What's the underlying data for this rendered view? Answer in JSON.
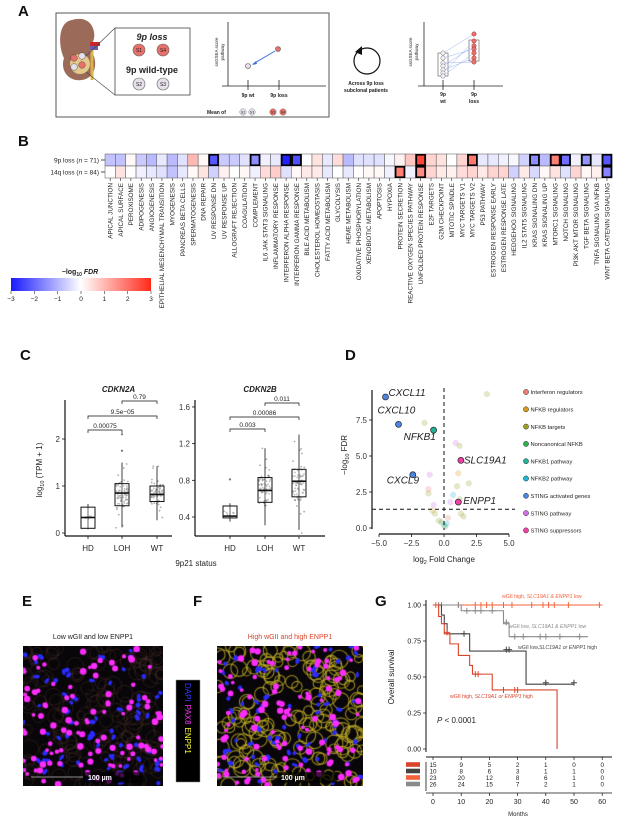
{
  "panels": {
    "A": "A",
    "B": "B",
    "C": "C",
    "D": "D",
    "E": "E",
    "F": "F",
    "G": "G"
  },
  "panel_a": {
    "loss_title": "9p loss",
    "wt_title": "9p wild-type",
    "samples": [
      "S1",
      "S4",
      "S2",
      "S3"
    ],
    "ylabel_1": "ssGSEA score",
    "ylabel_2": "pathway",
    "x_wt": "9p wt",
    "x_loss": "9p loss",
    "mean_of": "Mean of",
    "loop_1": "Across 9p loss",
    "loop_2": "subclonal patients",
    "right_wt_1": "9p",
    "right_wt_2": "wt",
    "right_loss_1": "9p",
    "right_loss_2": "loss",
    "colors": {
      "loss": "#e8706a",
      "wt": "#e6e0ea",
      "arrow": "#3b6fe0"
    }
  },
  "chart_data": [
    {
      "id": "B",
      "type": "heatmap",
      "rows": [
        "9p loss (n = 71)",
        "14q loss (n = 84)"
      ],
      "row_parts": [
        [
          "9p loss (",
          "n",
          " = 71)"
        ],
        [
          "14q loss (",
          "n",
          " = 84)"
        ]
      ],
      "columns": [
        "APICAL JUNCTION",
        "APICAL SURFACE",
        "PEROXISOME",
        "ADIPOGENESIS",
        "ANGIOGENESIS",
        "EPITHELIAL MESENCHYMAL TRANSITION",
        "MYOGENESIS",
        "PANCREAS BETA CELLS",
        "SPERMATOGENESIS",
        "DNA REPAIR",
        "UV RESPONSE DN",
        "UV RESPONSE UP",
        "ALLOGRAFT REJECTION",
        "COAGULATION",
        "COMPLEMENT",
        "IL6 JAK STAT3 SIGNALING",
        "INFLAMMATORY RESPONSE",
        "INTERFERON ALPHA RESPONSE",
        "INTERFERON GAMMA RESPONSE",
        "BILE ACID METABOLISM",
        "CHOLESTEROL HOMEOSTASIS",
        "FATTY ACID METABOLISM",
        "GLYCOLYSIS",
        "HEME METABOLISM",
        "OXIDATIVE PHOSPHORYLATION",
        "XENOBIOTIC METABOLISM",
        "APOPTOSIS",
        "HYPOXIA",
        "PROTEIN SECRETION",
        "REACTIVE OXYGEN SPECIES PATHWAY",
        "UNFOLDED PROTEIN RESPONSE",
        "E2F TARGETS",
        "G2M CHECKPOINT",
        "MITOTIC SPINDLE",
        "MYC TARGETS V1",
        "MYC TARGETS V2",
        "P53 PATHWAY",
        "ESTROGEN RESPONSE EARLY",
        "ESTROGEN RESPONSE LATE",
        "HEDGEHOG SIGNALING",
        "IL2 STAT5 SIGNALING",
        "KRAS SIGNALING DN",
        "KRAS SIGNALING UP",
        "MTORC1 SIGNALING",
        "NOTCH SIGNALING",
        "PI3K AKT MTOR SIGNALING",
        "TGF BETA SIGNALING",
        "TNFA SIGNALING VIA NFKB",
        "WNT BETA CATENIN SIGNALING"
      ],
      "values": [
        [
          -0.8,
          -0.8,
          0.1,
          -0.7,
          -0.9,
          -0.3,
          -0.9,
          -0.4,
          1.0,
          0.1,
          -2.2,
          -0.7,
          -0.7,
          -0.4,
          -1.5,
          -0.2,
          -0.3,
          -2.9,
          -2.3,
          0.0,
          0.4,
          -0.3,
          0.5,
          -0.9,
          -0.4,
          -0.4,
          -0.4,
          -0.1,
          0.2,
          0.8,
          2.6,
          0.6,
          0.4,
          0.0,
          0.6,
          1.9,
          -0.3,
          -0.3,
          -0.2,
          -0.1,
          -0.6,
          -1.5,
          -0.9,
          1.8,
          -1.9,
          -0.2,
          -1.4,
          -0.3,
          -2.2
        ],
        [
          0.0,
          0.4,
          0.0,
          -0.2,
          -0.3,
          -0.4,
          -0.8,
          -0.3,
          0.1,
          0.4,
          -0.6,
          0.2,
          0.0,
          0.1,
          -0.2,
          0.5,
          0.7,
          -0.4,
          0.1,
          0.3,
          0.3,
          -0.3,
          0.0,
          -0.3,
          0.0,
          0.1,
          0.1,
          -0.2,
          1.8,
          -0.2,
          1.6,
          0.6,
          0.3,
          0.2,
          0.5,
          0.6,
          0.3,
          0.6,
          0.6,
          -0.6,
          0.3,
          -0.5,
          0.1,
          0.4,
          -0.4,
          0.6,
          0.1,
          0.2,
          -1.6
        ]
      ],
      "significant": [
        [
          10,
          14,
          17,
          18,
          30,
          35,
          41,
          43,
          44,
          46,
          48
        ],
        [
          28,
          30,
          48
        ]
      ],
      "colorbar": {
        "title_pre": "−log",
        "title_sub": "10",
        "title_post": " FDR",
        "range": [
          -3,
          3
        ],
        "ticks": [
          "−3",
          "−2",
          "−1",
          "0",
          "1",
          "2",
          "3"
        ],
        "low_color": "#1a1aff",
        "high_color": "#ff2a1a"
      }
    },
    {
      "id": "C",
      "type": "box",
      "xlabel": "9p21 status",
      "ylabel_pre": "log",
      "ylabel_sub": "10",
      "ylabel_post": " (TPM + 1)",
      "categories": [
        "HD",
        "LOH",
        "WT"
      ],
      "plots": [
        {
          "title": "CDKN2A",
          "ylim": [
            0,
            2.8
          ],
          "ticks": [
            0,
            1,
            2
          ],
          "tick_labels": [
            "0",
            "1",
            "2"
          ],
          "boxes": [
            {
              "q1": 0.1,
              "median": 0.33,
              "q3": 0.55,
              "min": 0.08,
              "max": 0.62,
              "outliers": []
            },
            {
              "q1": 0.58,
              "median": 0.85,
              "q3": 1.05,
              "min": 0.12,
              "max": 1.5,
              "outliers": [
                1.75,
                2.1
              ]
            },
            {
              "q1": 0.67,
              "median": 0.82,
              "q3": 1.0,
              "min": 0.27,
              "max": 1.42,
              "outliers": []
            }
          ],
          "comparisons": [
            {
              "a": 0,
              "b": 1,
              "p": "0.00075",
              "level": 0
            },
            {
              "a": 0,
              "b": 2,
              "p": "9.5e−05",
              "level": 1
            },
            {
              "a": 1,
              "b": 2,
              "p": "0.79",
              "level": 2
            }
          ]
        },
        {
          "title": "CDKN2B",
          "ylim": [
            0.2,
            1.65
          ],
          "ticks": [
            0.4,
            0.8,
            1.2,
            1.6
          ],
          "tick_labels": [
            "0.4",
            "0.8",
            "1.2",
            "1.6"
          ],
          "boxes": [
            {
              "q1": 0.39,
              "median": 0.41,
              "q3": 0.52,
              "min": 0.35,
              "max": 0.55,
              "outliers": [
                0.81
              ]
            },
            {
              "q1": 0.56,
              "median": 0.69,
              "q3": 0.83,
              "min": 0.31,
              "max": 1.15,
              "outliers": []
            },
            {
              "q1": 0.62,
              "median": 0.79,
              "q3": 0.92,
              "min": 0.26,
              "max": 1.3,
              "outliers": []
            }
          ],
          "comparisons": [
            {
              "a": 0,
              "b": 1,
              "p": "0.003",
              "level": 0
            },
            {
              "a": 0,
              "b": 2,
              "p": "0.00086",
              "level": 1
            },
            {
              "a": 1,
              "b": 2,
              "p": "0.011",
              "level": 2
            }
          ]
        }
      ]
    },
    {
      "id": "D",
      "type": "scatter",
      "xlabel_pre": "log",
      "xlabel_sub": "2",
      "xlabel_post": " Fold Change",
      "ylabel_pre": "−log",
      "ylabel_sub": "10",
      "ylabel_post": " FDR",
      "xlim": [
        -5,
        5
      ],
      "ylim": [
        0,
        9.6
      ],
      "xticks": [
        "−5.0",
        "−2.5",
        "0.0",
        "2.5",
        "5.0"
      ],
      "xtick_values": [
        -5,
        -2.5,
        0,
        2.5,
        5
      ],
      "yticks": [
        "0.0",
        "2.5",
        "5.0",
        "7.5"
      ],
      "ytick_values": [
        0,
        2.5,
        5,
        7.5
      ],
      "fdr_threshold": 1.3,
      "legend": [
        {
          "label": "Interferon regulators",
          "color": "#f27b70"
        },
        {
          "label": "NFKB regulators",
          "color": "#d99a1c"
        },
        {
          "label": "NFKB targets",
          "color": "#9aa11e"
        },
        {
          "label": "Noncanonical NFKB",
          "color": "#2eb24a"
        },
        {
          "label": "NFKB1 pathway",
          "color": "#1fb397"
        },
        {
          "label": "NFKB2 pathway",
          "color": "#1fb5d6"
        },
        {
          "label": "STING activated genes",
          "color": "#4b86e0"
        },
        {
          "label": "STING pathway",
          "color": "#d36ce8"
        },
        {
          "label": "STING suppressors",
          "color": "#f040a8"
        }
      ],
      "labeled_points": [
        {
          "gene": "CXCL11",
          "x": -4.5,
          "y": 9.1,
          "group": 6
        },
        {
          "gene": "CXCL10",
          "x": -3.5,
          "y": 7.2,
          "group": 6
        },
        {
          "gene": "NFKB1",
          "x": -0.8,
          "y": 6.8,
          "group": 4
        },
        {
          "gene": "SLC19A1",
          "x": 1.3,
          "y": 4.7,
          "group": 8
        },
        {
          "gene": "CXCL9",
          "x": -2.4,
          "y": 3.7,
          "group": 6
        },
        {
          "gene": "ENPP1",
          "x": 1.1,
          "y": 1.8,
          "group": 8
        }
      ],
      "other_points": [
        {
          "x": 3.3,
          "y": 9.3,
          "group": 2
        },
        {
          "x": -1.5,
          "y": 7.3,
          "group": 2
        },
        {
          "x": 0.9,
          "y": 5.9,
          "group": 7
        },
        {
          "x": 1.2,
          "y": 5.7,
          "group": 2
        },
        {
          "x": -1.1,
          "y": 3.7,
          "group": 7
        },
        {
          "x": 1.1,
          "y": 3.8,
          "group": 1
        },
        {
          "x": 1.9,
          "y": 3.1,
          "group": 2
        },
        {
          "x": 1.0,
          "y": 2.9,
          "group": 2
        },
        {
          "x": -1.2,
          "y": 2.7,
          "group": 0
        },
        {
          "x": -1.2,
          "y": 2.4,
          "group": 2
        },
        {
          "x": 0.7,
          "y": 2.3,
          "group": 5
        },
        {
          "x": 1.2,
          "y": 2.0,
          "group": 2
        },
        {
          "x": 0.5,
          "y": 1.8,
          "group": 7
        },
        {
          "x": -0.8,
          "y": 1.6,
          "group": 7
        },
        {
          "x": -0.9,
          "y": 1.2,
          "group": 1
        },
        {
          "x": -0.7,
          "y": 1.0,
          "group": 2
        },
        {
          "x": 1.3,
          "y": 1.0,
          "group": 2
        },
        {
          "x": 1.5,
          "y": 0.8,
          "group": 2
        },
        {
          "x": 0.3,
          "y": 0.7,
          "group": 0
        },
        {
          "x": -0.2,
          "y": 0.4,
          "group": 3
        },
        {
          "x": 0.0,
          "y": 0.2,
          "group": 4
        },
        {
          "x": 0.1,
          "y": 0.1,
          "group": 3
        },
        {
          "x": -0.4,
          "y": 0.5,
          "group": 2
        },
        {
          "x": 0.2,
          "y": 0.3,
          "group": 5
        }
      ]
    },
    {
      "id": "G",
      "type": "line",
      "ylabel": "Overall survival",
      "xlabel": "Months",
      "xlim": [
        0,
        60
      ],
      "ylim": [
        0,
        1
      ],
      "xticks": [
        "0",
        "10",
        "20",
        "30",
        "40",
        "50",
        "60"
      ],
      "xtick_values": [
        0,
        10,
        20,
        30,
        40,
        50,
        60
      ],
      "yticks": [
        "0.00",
        "0.25",
        "0.50",
        "0.75",
        "1.00"
      ],
      "ytick_values": [
        0,
        0.25,
        0.5,
        0.75,
        1
      ],
      "pvalue_pre": "P",
      "pvalue_post": " < 0.0001",
      "series": [
        {
          "name_pre": "wGII high, ",
          "name_it": "SLC19A1 & ENPP1",
          "name_post": " low",
          "color": "#f4623a",
          "steps": [
            [
              0,
              1
            ],
            [
              59,
              1
            ]
          ],
          "censor": [
            [
              1,
              1
            ],
            [
              3,
              1
            ],
            [
              9,
              1
            ],
            [
              15,
              1
            ],
            [
              17,
              1
            ],
            [
              19,
              1
            ],
            [
              21,
              1
            ],
            [
              25,
              1
            ],
            [
              28,
              1
            ],
            [
              35,
              1
            ],
            [
              39,
              1
            ],
            [
              41,
              1
            ],
            [
              43,
              1
            ],
            [
              48,
              1
            ],
            [
              59,
              1
            ]
          ],
          "risk": [
            "23",
            "20",
            "12",
            "8",
            "6",
            "1",
            "0"
          ],
          "risk_order": 2
        },
        {
          "name_pre": "wGII low, ",
          "name_it": "SLC19A1 & ENPP1",
          "name_post": " low",
          "color": "#8a8a8a",
          "steps": [
            [
              0,
              1
            ],
            [
              10,
              1
            ],
            [
              10,
              0.96
            ],
            [
              25,
              0.96
            ],
            [
              25,
              0.87
            ],
            [
              27,
              0.87
            ],
            [
              27,
              0.78
            ],
            [
              55,
              0.78
            ]
          ],
          "censor": [
            [
              2,
              1
            ],
            [
              9,
              1
            ],
            [
              12,
              0.96
            ],
            [
              15,
              0.96
            ],
            [
              17,
              0.96
            ],
            [
              21,
              0.96
            ],
            [
              26,
              0.88
            ],
            [
              29,
              0.78
            ],
            [
              32,
              0.78
            ],
            [
              38,
              0.78
            ],
            [
              40,
              0.78
            ],
            [
              45,
              0.78
            ],
            [
              52,
              0.78
            ]
          ],
          "risk": [
            "26",
            "24",
            "15",
            "7",
            "2",
            "1",
            "0"
          ],
          "risk_order": 3
        },
        {
          "name_pre": "wGII low,",
          "name_it": "SLC19A1 or ENPP1",
          "name_post": " high",
          "color": "#444444",
          "steps": [
            [
              0,
              1
            ],
            [
              3,
              1
            ],
            [
              3,
              0.93
            ],
            [
              4,
              0.93
            ],
            [
              4,
              0.87
            ],
            [
              5,
              0.87
            ],
            [
              5,
              0.8
            ],
            [
              13,
              0.8
            ],
            [
              13,
              0.68
            ],
            [
              33,
              0.68
            ],
            [
              33,
              0.45
            ],
            [
              50,
              0.45
            ]
          ],
          "censor": [
            [
              11,
              0.8
            ],
            [
              26,
              0.69
            ],
            [
              27,
              0.69
            ],
            [
              40,
              0.46
            ],
            [
              50,
              0.46
            ]
          ],
          "risk": [
            "10",
            "8",
            "6",
            "3",
            "1",
            "1",
            "0"
          ],
          "risk_order": 1
        },
        {
          "name_pre": "wGII high, ",
          "name_it": "SLC19A1 or ENPP1",
          "name_post": " high",
          "color": "#d9442b",
          "steps": [
            [
              0,
              1
            ],
            [
              2,
              1
            ],
            [
              2,
              0.92
            ],
            [
              3,
              0.92
            ],
            [
              3,
              0.87
            ],
            [
              4,
              0.87
            ],
            [
              4,
              0.8
            ],
            [
              6,
              0.8
            ],
            [
              6,
              0.73
            ],
            [
              9,
              0.73
            ],
            [
              9,
              0.65
            ],
            [
              13,
              0.65
            ],
            [
              13,
              0.58
            ],
            [
              14,
              0.58
            ],
            [
              14,
              0.52
            ],
            [
              21,
              0.52
            ],
            [
              21,
              0.41
            ],
            [
              44,
              0.41
            ],
            [
              44,
              0
            ]
          ],
          "censor": [
            [
              5,
              0.81
            ],
            [
              15,
              0.52
            ],
            [
              16,
              0.52
            ],
            [
              25,
              0.41
            ],
            [
              29,
              0.41
            ],
            [
              30,
              0.41
            ]
          ],
          "risk": [
            "15",
            "9",
            "5",
            "2",
            "1",
            "0",
            "0"
          ],
          "risk_order": 0
        }
      ]
    }
  ],
  "panel_e": {
    "title": "Low wGII and low ENPP1",
    "scale": "100 µm"
  },
  "panel_f": {
    "title": "High wGII and high ENPP1",
    "scale": "100 µm",
    "title_color": "#d9442b"
  },
  "stain_legend": {
    "dapi": "DAPI",
    "pax8": "PAX8",
    "enpp1": "ENPP1"
  }
}
